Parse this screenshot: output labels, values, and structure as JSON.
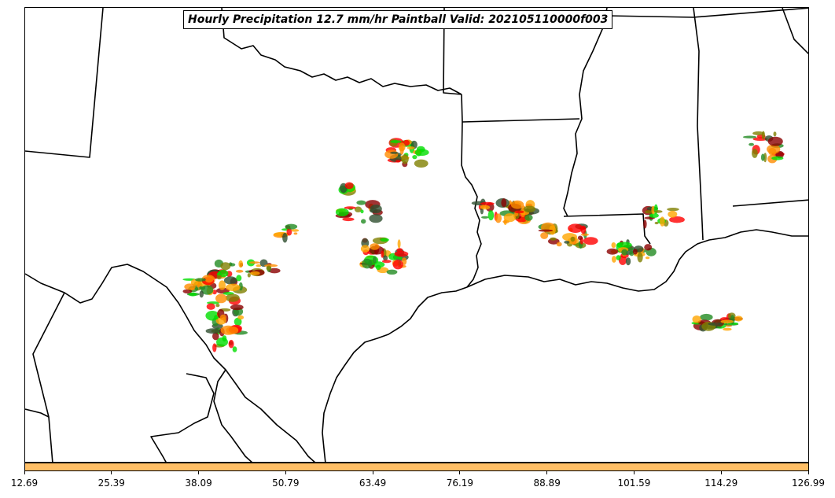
{
  "title": "Hourly Precipitation 12.7 mm/hr Paintball Valid: 202105110000f003",
  "colorbar": {
    "fill_color": "#ffbf66",
    "ticks": [
      "12.69",
      "25.39",
      "38.09",
      "50.79",
      "63.49",
      "76.19",
      "88.89",
      "101.59",
      "114.29",
      "126.99"
    ]
  },
  "palette": [
    "#ff0000",
    "#ff8c00",
    "#228b22",
    "#00dd00",
    "#8b0000",
    "#808000",
    "#2f4f2f",
    "#ffa500"
  ]
}
